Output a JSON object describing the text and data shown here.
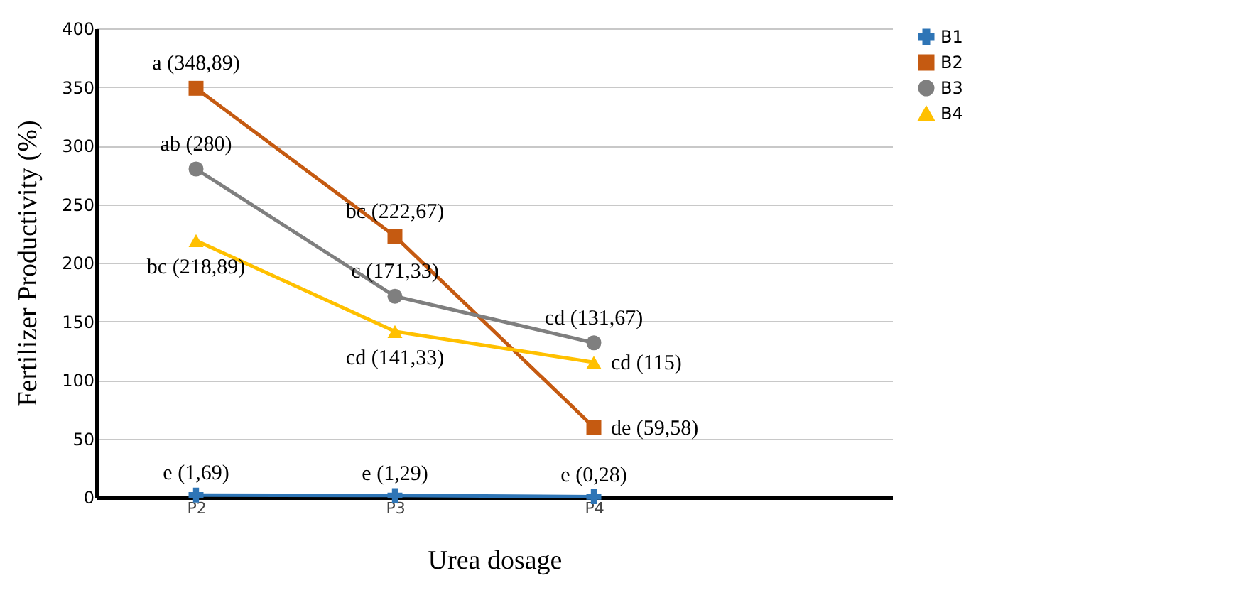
{
  "chart_data": {
    "type": "line",
    "xlabel": "Urea dosage",
    "ylabel": "Fertilizer Productivity (%)",
    "categories": [
      "P2",
      "P3",
      "P4",
      null
    ],
    "ylim": [
      0,
      400
    ],
    "yticks": [
      0,
      50,
      100,
      150,
      200,
      250,
      300,
      350,
      400
    ],
    "grid": "y",
    "legend": "right",
    "series": [
      {
        "name": "B1",
        "color": "#2e75b6",
        "marker": "cross",
        "values": [
          1.69,
          1.29,
          0.28,
          null
        ],
        "value_labels": [
          "e (1,69)",
          "e (1,29)",
          "e (0,28)",
          null
        ]
      },
      {
        "name": "B2",
        "color": "#c55a11",
        "marker": "square",
        "values": [
          348.89,
          222.67,
          59.58,
          null
        ],
        "value_labels": [
          "a (348,89)",
          "bc (222,67)",
          "de (59,58)",
          null
        ]
      },
      {
        "name": "B3",
        "color": "#7f7f7f",
        "marker": "circle",
        "values": [
          280,
          171.33,
          131.67,
          null
        ],
        "value_labels": [
          "ab (280)",
          "c (171,33)",
          "cd (131,67)",
          null
        ]
      },
      {
        "name": "B4",
        "color": "#ffc000",
        "marker": "triangle",
        "values": [
          218.89,
          141.33,
          115,
          null
        ],
        "value_labels": [
          "bc (218,89)",
          "cd (141,33)",
          "cd (115)",
          null
        ]
      }
    ]
  }
}
